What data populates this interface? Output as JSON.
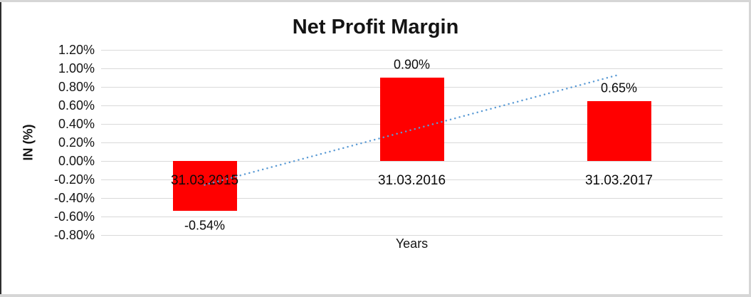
{
  "chart_data": {
    "type": "bar",
    "title": "Net Profit Margin",
    "xlabel": "Years",
    "ylabel": "IN (%)",
    "categories": [
      "31.03.2015",
      "31.03.2016",
      "31.03.2017"
    ],
    "series": [
      {
        "name": "Net Profit Margin",
        "values": [
          -0.54,
          0.9,
          0.65
        ]
      }
    ],
    "value_labels": [
      "-0.54%",
      "0.90%",
      "0.65%"
    ],
    "y_tick_labels": [
      "1.20%",
      "1.00%",
      "0.80%",
      "0.60%",
      "0.40%",
      "0.20%",
      "0.00%",
      "-0.20%",
      "-0.40%",
      "-0.60%",
      "-0.80%"
    ],
    "ylim": [
      -0.8,
      1.2
    ],
    "y_step": 0.2,
    "grid": "horizontal",
    "legend": false,
    "bar_color": "#FF0000",
    "gridline_color": "#D9D9D9",
    "trendline": {
      "type": "linear",
      "style": "dotted",
      "color": "#5B9BD5"
    }
  },
  "frame": {
    "left_border_color": "#2e2e2e",
    "edge_border_color": "#d6d6d6"
  }
}
